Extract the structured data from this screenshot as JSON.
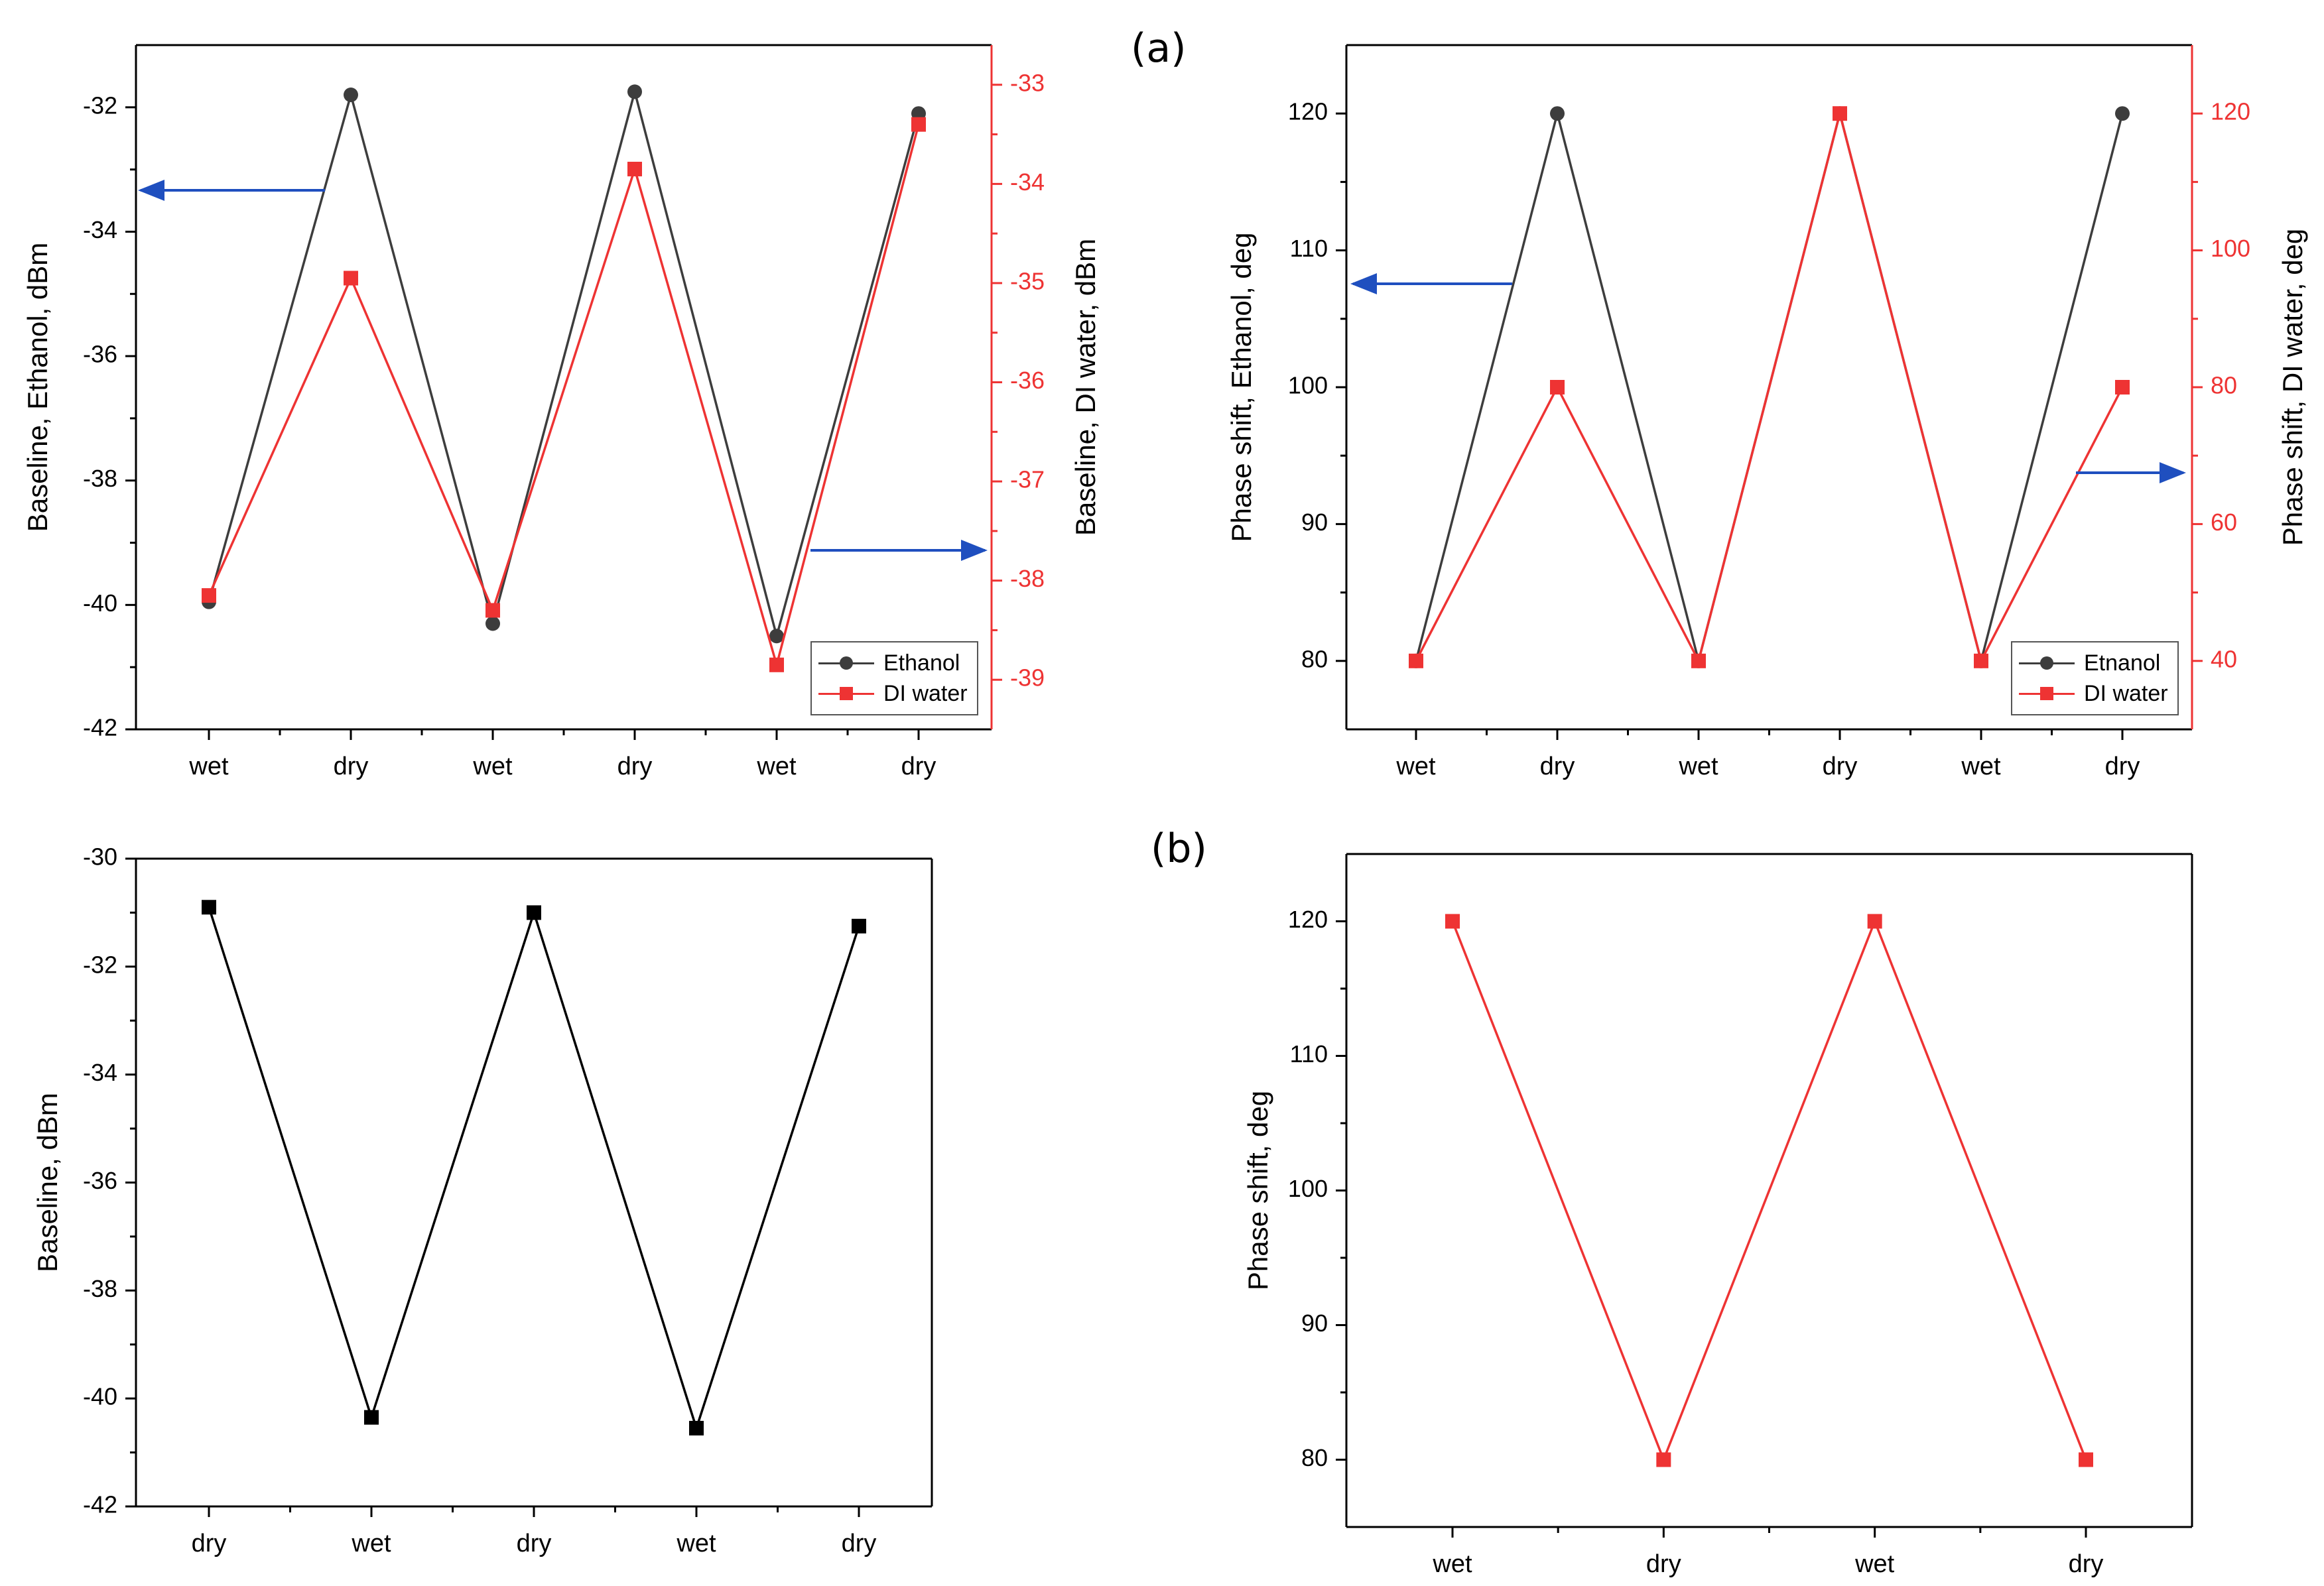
{
  "figure": {
    "labels": {
      "a": "(a)",
      "b": "(b)"
    }
  },
  "colors": {
    "black": "#3d3d3d",
    "pure_black": "#000000",
    "red": "#ee3333",
    "blue": "#1f4fbf"
  },
  "chart_data": [
    {
      "id": "top_left",
      "type": "line",
      "categories": [
        "wet",
        "dry",
        "wet",
        "dry",
        "wet",
        "dry"
      ],
      "series": [
        {
          "name": "Ethanol",
          "axis": "left",
          "marker": "circle",
          "color": "#3d3d3d",
          "values": [
            -39.95,
            -31.8,
            -40.3,
            -31.75,
            -40.5,
            -32.1
          ]
        },
        {
          "name": "DI water",
          "axis": "right",
          "marker": "square",
          "color": "#ee3333",
          "values": [
            -38.15,
            -34.95,
            -38.3,
            -33.85,
            -38.85,
            -33.4
          ]
        }
      ],
      "ylabel": "Baseline, Ethanol, dBm",
      "ylabel_right": "Baseline, DI water, dBm",
      "ylim": [
        -42,
        -31
      ],
      "ylim_right": [
        -39.5,
        -32.6
      ],
      "yticks": [
        -42,
        -40,
        -38,
        -36,
        -34,
        -32
      ],
      "yticks_right": [
        -39,
        -38,
        -37,
        -36,
        -35,
        -34,
        -33
      ],
      "legend": [
        "Ethanol",
        "DI water"
      ],
      "legend_position": "bottom-right"
    },
    {
      "id": "top_right",
      "type": "line",
      "categories": [
        "wet",
        "dry",
        "wet",
        "dry",
        "wet",
        "dry"
      ],
      "series": [
        {
          "name": "Etnanol",
          "axis": "left",
          "marker": "circle",
          "color": "#3d3d3d",
          "values": [
            80,
            120,
            80,
            120,
            80,
            120
          ]
        },
        {
          "name": "DI water",
          "axis": "right",
          "marker": "square",
          "color": "#ee3333",
          "values": [
            40,
            80,
            40,
            120,
            40,
            80
          ]
        }
      ],
      "ylabel": "Phase shift, Ethanol, deg",
      "ylabel_right": "Phase shift, DI water, deg",
      "ylim": [
        75,
        125
      ],
      "ylim_right": [
        30,
        130
      ],
      "yticks": [
        80,
        90,
        100,
        110,
        120
      ],
      "yticks_right": [
        40,
        60,
        80,
        100,
        120
      ],
      "legend": [
        "Etnanol",
        "DI water"
      ],
      "legend_position": "bottom-right"
    },
    {
      "id": "bottom_left",
      "type": "line",
      "categories": [
        "dry",
        "wet",
        "dry",
        "wet",
        "dry"
      ],
      "series": [
        {
          "name": "Baseline",
          "marker": "square",
          "color": "#000000",
          "values": [
            -30.9,
            -40.35,
            -31.0,
            -40.55,
            -31.25
          ]
        }
      ],
      "ylabel": "Baseline, dBm",
      "ylim": [
        -42,
        -30
      ],
      "yticks": [
        -42,
        -40,
        -38,
        -36,
        -34,
        -32,
        -30
      ]
    },
    {
      "id": "bottom_right",
      "type": "line",
      "categories": [
        "wet",
        "dry",
        "wet",
        "dry"
      ],
      "series": [
        {
          "name": "Phase shift",
          "marker": "square",
          "color": "#ee3333",
          "values": [
            120,
            80,
            120,
            80
          ]
        }
      ],
      "ylabel": "Phase shift, deg",
      "ylim": [
        75,
        125
      ],
      "yticks": [
        80,
        90,
        100,
        110,
        120
      ]
    }
  ],
  "legends": {
    "top_left": {
      "items": [
        "Ethanol",
        "DI water"
      ]
    },
    "top_right": {
      "items": [
        "Etnanol",
        "DI water"
      ]
    }
  }
}
